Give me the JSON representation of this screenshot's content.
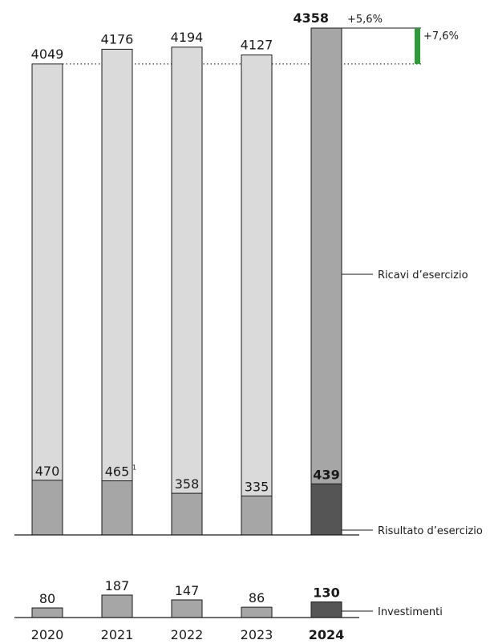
{
  "chart_data": {
    "type": "bar",
    "categories": [
      "2020",
      "2021",
      "2022",
      "2023",
      "2024"
    ],
    "highlight_category": "2024",
    "series": [
      {
        "name": "Ricavi d’esercizio",
        "values": [
          4049,
          4176,
          4194,
          4127,
          4358
        ]
      },
      {
        "name": "Risultato d’esercizio",
        "values": [
          470,
          465,
          358,
          335,
          439
        ]
      },
      {
        "name": "Investimenti",
        "values": [
          80,
          187,
          147,
          86,
          130
        ]
      }
    ],
    "value_labels": {
      "revenue": [
        "4049",
        "4176",
        "4194",
        "4127",
        "4358"
      ],
      "result": [
        "470",
        "465",
        "358",
        "335",
        "439"
      ],
      "investments": [
        "80",
        "187",
        "147",
        "86",
        "130"
      ]
    },
    "footnote_marker": {
      "category": "2021",
      "text": "1"
    },
    "annotations": {
      "yoy_change": "+5,6%",
      "change_vs_2020": "+7,6%"
    },
    "reference_line_value": 4049,
    "ylim_main": [
      0,
      4358
    ],
    "ylim_investments": [
      0,
      187
    ],
    "colors": {
      "bar_light": "#dadada",
      "bar_mid": "#a6a6a6",
      "bar_dark": "#555555",
      "bar_border": "#1a1a1a",
      "change_bar": "#2e9a3a",
      "text": "#1a1a1a"
    }
  }
}
